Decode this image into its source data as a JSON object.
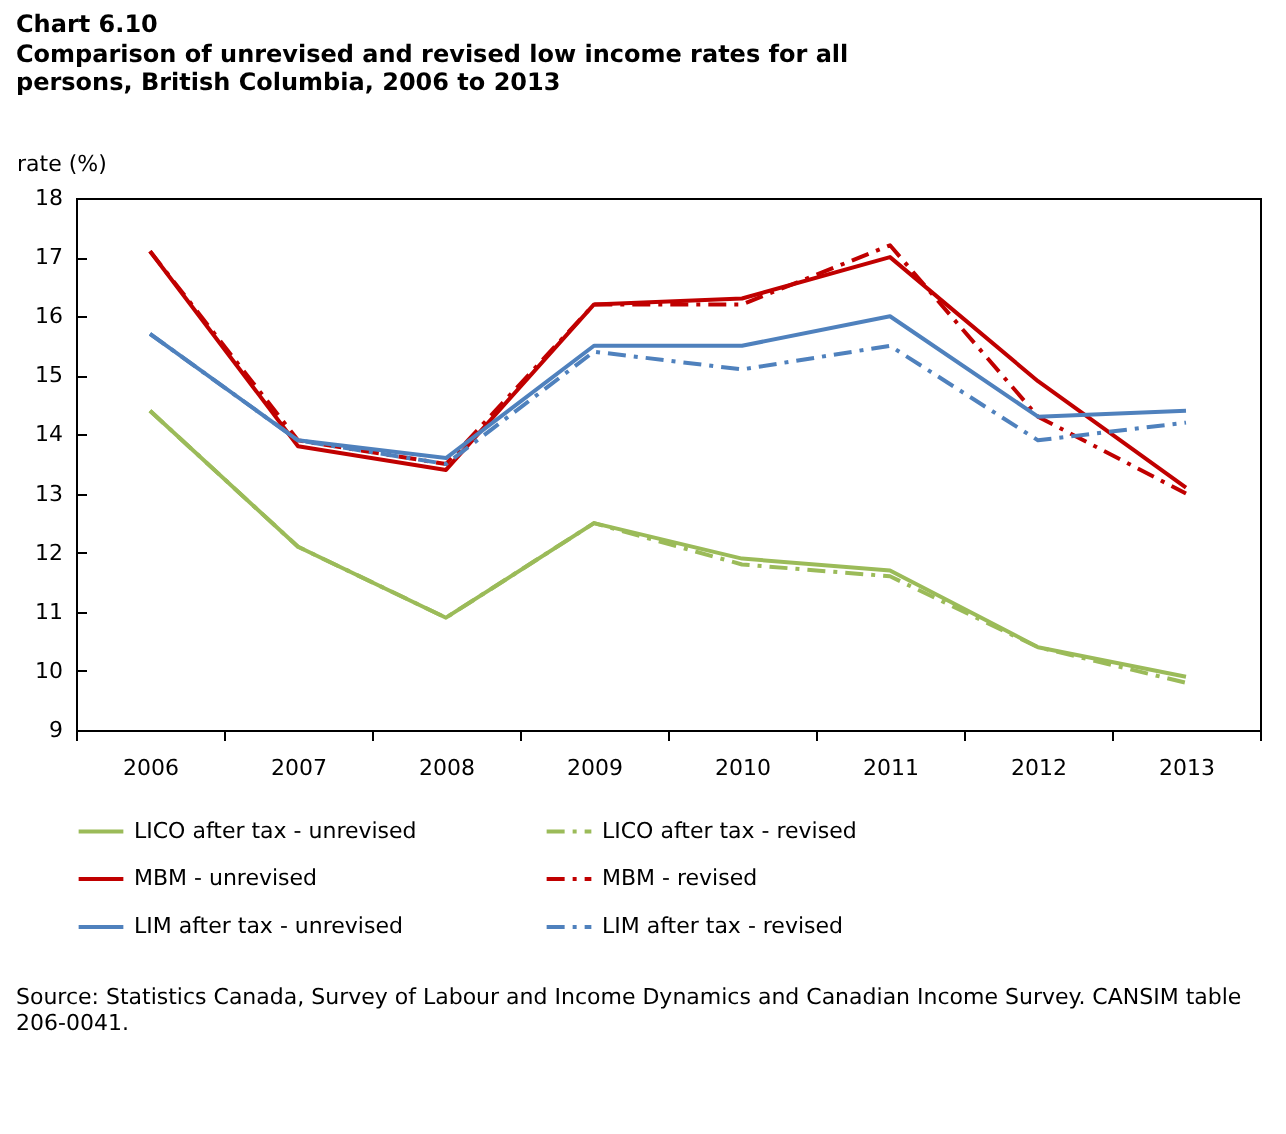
{
  "chart_data": {
    "type": "line",
    "title": "Chart 6.10",
    "subtitle": "Comparison of unrevised and revised low income rates for all persons, British Columbia, 2006 to 2013",
    "ylabel": "rate (%)",
    "categories": [
      "2006",
      "2007",
      "2008",
      "2009",
      "2010",
      "2011",
      "2012",
      "2013"
    ],
    "ylim": [
      9,
      18
    ],
    "yticks": [
      9,
      10,
      11,
      12,
      13,
      14,
      15,
      16,
      17,
      18
    ],
    "grid": false,
    "legend": "bottom",
    "marker": "none",
    "series": [
      {
        "name": "LICO after tax - unrevised",
        "color": "#9bbb59",
        "line_style": "solid",
        "values": [
          14.4,
          12.1,
          10.9,
          12.5,
          11.9,
          11.7,
          10.4,
          9.9
        ]
      },
      {
        "name": "LICO after tax - revised",
        "color": "#9bbb59",
        "line_style": "dashed",
        "values": [
          14.4,
          12.1,
          10.9,
          12.5,
          11.8,
          11.6,
          10.4,
          9.8
        ]
      },
      {
        "name": "MBM - unrevised",
        "color": "#c00000",
        "line_style": "solid",
        "values": [
          17.1,
          13.8,
          13.4,
          16.2,
          16.3,
          17.0,
          14.9,
          13.1
        ]
      },
      {
        "name": "MBM - revised",
        "color": "#c00000",
        "line_style": "dashed",
        "values": [
          17.1,
          13.9,
          13.5,
          16.2,
          16.2,
          17.2,
          14.3,
          13.0
        ]
      },
      {
        "name": "LIM after tax - unrevised",
        "color": "#4f81bd",
        "line_style": "solid",
        "values": [
          15.7,
          13.9,
          13.6,
          15.5,
          15.5,
          16.0,
          14.3,
          14.4
        ]
      },
      {
        "name": "LIM after tax - revised",
        "color": "#4f81bd",
        "line_style": "dashed",
        "values": [
          15.7,
          13.9,
          13.5,
          15.4,
          15.1,
          15.5,
          13.9,
          14.2
        ]
      }
    ],
    "annotations": [
      "Source: Statistics Canada, Survey of Labour and Income Dynamics and Canadian Income Survey. CANSIM table 206-0041."
    ]
  }
}
